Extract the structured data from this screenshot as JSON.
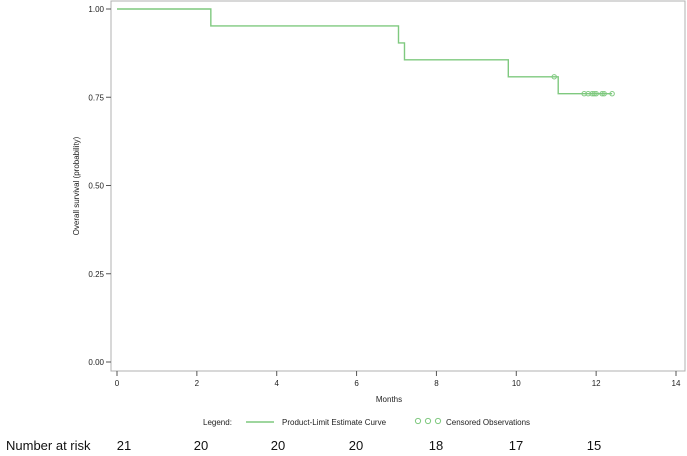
{
  "chart_data": {
    "type": "line",
    "xlabel": "Months",
    "ylabel": "Overall survival (probability)",
    "xlim": [
      0,
      14
    ],
    "ylim": [
      0,
      1
    ],
    "x_ticks": [
      "0",
      "2",
      "4",
      "6",
      "8",
      "10",
      "12",
      "14"
    ],
    "x_tick_values": [
      0,
      2,
      4,
      6,
      8,
      10,
      12,
      14
    ],
    "y_ticks": [
      "0.00",
      "0.25",
      "0.50",
      "0.75",
      "1.00"
    ],
    "y_tick_values": [
      0,
      0.25,
      0.5,
      0.75,
      1.0
    ],
    "grid": false,
    "line_color": "#7fc97f",
    "curve": {
      "step_x": [
        0,
        2.35,
        7.05,
        7.2,
        9.8,
        11.05,
        12.4
      ],
      "step_y": [
        1.0,
        0.952,
        0.904,
        0.856,
        0.808,
        0.76,
        0.76
      ]
    },
    "censored": {
      "x": [
        10.95,
        11.7,
        11.8,
        11.9,
        11.95,
        12.0,
        12.15,
        12.2,
        12.4
      ],
      "y": [
        0.808,
        0.76,
        0.76,
        0.76,
        0.76,
        0.76,
        0.76,
        0.76,
        0.76
      ]
    },
    "legend": {
      "title": "Legend:",
      "placement": "bottom",
      "entries": [
        "Product-Limit Estimate Curve",
        "Censored Observations"
      ]
    }
  },
  "risk_table": {
    "label": "Number at risk",
    "values": [
      "21",
      "20",
      "20",
      "20",
      "18",
      "17",
      "15"
    ]
  }
}
